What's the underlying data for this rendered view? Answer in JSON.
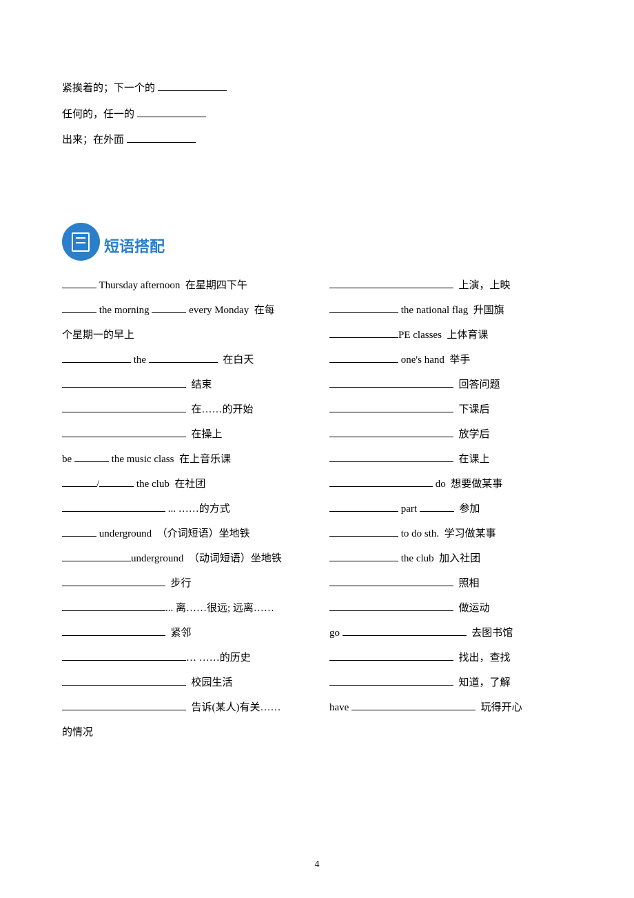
{
  "top": [
    {
      "zh": "紧挨着的；下一个的"
    },
    {
      "zh": "任何的，任一的"
    },
    {
      "zh": "出来；在外面"
    }
  ],
  "section_title": "短语搭配",
  "section_color": "#2b7ec9",
  "left": [
    {
      "html": "<span class='blank blank-sm'></span> Thursday afternoon&nbsp;&nbsp;在星期四下午"
    },
    {
      "html": "<span class='blank blank-sm'></span> the morning <span class='blank blank-sm'></span> every Monday&nbsp;&nbsp;在每"
    },
    {
      "html": "个星期一的早上"
    },
    {
      "html": "<span class='blank blank-md'></span> the <span class='blank blank-md'></span>&nbsp;&nbsp;在白天"
    },
    {
      "html": "<span class='blank blank-xl'></span>&nbsp;&nbsp;结束"
    },
    {
      "html": "<span class='blank blank-xl'></span>&nbsp;&nbsp;在……的开始"
    },
    {
      "html": "<span class='blank blank-xl'></span>&nbsp;&nbsp;在操上"
    },
    {
      "html": "be <span class='blank blank-sm'></span> the music class&nbsp;&nbsp;在上音乐课"
    },
    {
      "html": "<span class='blank blank-sm'></span>/<span class='blank blank-sm'></span> the club&nbsp;&nbsp;在社团"
    },
    {
      "html": "<span class='blank blank-lg'></span> ... ……的方式"
    },
    {
      "html": "<span class='blank blank-sm'></span> underground&nbsp;&nbsp;（介词短语）坐地铁"
    },
    {
      "html": "<span class='blank blank-md'></span>underground&nbsp;&nbsp;（动词短语）坐地铁"
    },
    {
      "html": "<span class='blank blank-lg'></span>&nbsp;&nbsp;步行"
    },
    {
      "html": "<span class='blank blank-lg'></span>... 离……很远; 远离……"
    },
    {
      "html": "<span class='blank blank-lg'></span>&nbsp;&nbsp;紧邻"
    },
    {
      "html": "<span class='blank blank-xl'></span>… ……的历史"
    },
    {
      "html": "<span class='blank blank-xl'></span>&nbsp;&nbsp;校园生活"
    },
    {
      "html": "<span class='blank blank-xl'></span>&nbsp;&nbsp;告诉(某人)有关……"
    },
    {
      "html": "的情况"
    }
  ],
  "right": [
    {
      "html": "<span class='blank blank-xl'></span>&nbsp;&nbsp;上演，上映"
    },
    {
      "html": "<span class='blank blank-md'></span> the national flag&nbsp;&nbsp;升国旗"
    },
    {
      "html": "<span class='blank blank-md'></span>PE classes&nbsp;&nbsp;上体育课"
    },
    {
      "html": "<span class='blank blank-md'></span> one's hand&nbsp;&nbsp;举手"
    },
    {
      "html": "<span class='blank blank-xl'></span>&nbsp;&nbsp;回答问题"
    },
    {
      "html": "<span class='blank blank-xl'></span>&nbsp;&nbsp;下课后"
    },
    {
      "html": "<span class='blank blank-xl'></span>&nbsp;&nbsp;放学后"
    },
    {
      "html": "<span class='blank blank-xl'></span>&nbsp;&nbsp;在课上"
    },
    {
      "html": "<span class='blank blank-lg'></span> do&nbsp;&nbsp;想要做某事"
    },
    {
      "html": "<span class='blank blank-md'></span> part <span class='blank blank-sm'></span>&nbsp;&nbsp;参加"
    },
    {
      "html": "<span class='blank blank-md'></span> to do sth.&nbsp;&nbsp;学习做某事"
    },
    {
      "html": "<span class='blank blank-md'></span> the club&nbsp;&nbsp;加入社团"
    },
    {
      "html": "<span class='blank blank-xl'></span>&nbsp;&nbsp;照相"
    },
    {
      "html": "<span class='blank blank-xl'></span>&nbsp;&nbsp;做运动"
    },
    {
      "html": "go <span class='blank blank-xl'></span>&nbsp;&nbsp;去图书馆"
    },
    {
      "html": "<span class='blank blank-xl'></span>&nbsp;&nbsp;找出，查找"
    },
    {
      "html": "<span class='blank blank-xl'></span>&nbsp;&nbsp;知道，了解"
    },
    {
      "html": "have <span class='blank blank-xl'></span>&nbsp;&nbsp;玩得开心"
    }
  ],
  "page_number": "4"
}
